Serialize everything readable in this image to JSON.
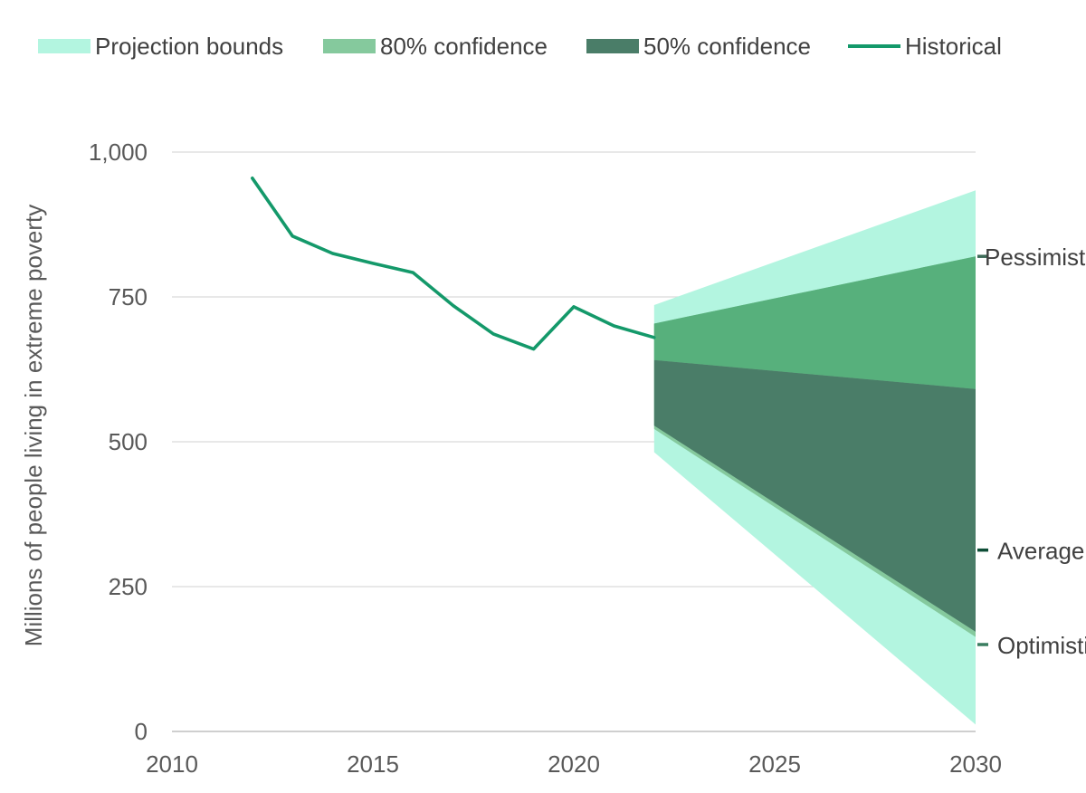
{
  "chart_data": {
    "type": "area",
    "title": "",
    "xlabel": "",
    "ylabel": "Millions of people living in extreme poverty",
    "xlim": [
      2010,
      2030
    ],
    "ylim": [
      0,
      1000
    ],
    "x_ticks": [
      2010,
      2015,
      2020,
      2025,
      2030
    ],
    "y_ticks": [
      {
        "value": 0,
        "label": "0"
      },
      {
        "value": 250,
        "label": "250"
      },
      {
        "value": 500,
        "label": "500"
      },
      {
        "value": 750,
        "label": "750"
      },
      {
        "value": 1000,
        "label": "1,000"
      }
    ],
    "grid": true,
    "legend_position": "top",
    "legend": [
      {
        "label": "Projection bounds",
        "color": "#b3f5e0",
        "kind": "area"
      },
      {
        "label": "80% confidence",
        "color": "#85c99d",
        "kind": "area"
      },
      {
        "label": "50% confidence",
        "color": "#4a7d68",
        "kind": "area"
      },
      {
        "label": "Historical",
        "color": "#14996a",
        "kind": "line"
      }
    ],
    "historical": {
      "name": "Historical",
      "color": "#14996a",
      "x": [
        2012,
        2013,
        2014,
        2015,
        2016,
        2017,
        2018,
        2019,
        2020,
        2021,
        2022
      ],
      "y": [
        955,
        855,
        825,
        808,
        792,
        735,
        686,
        660,
        733,
        700,
        680
      ]
    },
    "projection_bounds": {
      "name": "Projection bounds",
      "color": "#b3f5e0",
      "x": [
        2022,
        2030
      ],
      "upper": [
        736,
        934
      ],
      "lower": [
        482,
        12
      ]
    },
    "confidence_80": {
      "name": "80% confidence",
      "color": "#85c99d",
      "x": [
        2022,
        2030
      ],
      "upper": [
        704,
        820
      ],
      "lower": [
        522,
        163
      ]
    },
    "confidence_50": {
      "name": "50% confidence",
      "color": "#4a7d68",
      "x": [
        2022,
        2030
      ],
      "upper": [
        641,
        591
      ],
      "lower": [
        528,
        172
      ]
    },
    "band_80_upper_fill_color": "#57b07c",
    "annotations": [
      {
        "label": "Pessimistic",
        "x": 2030,
        "y": 820,
        "marker_color": "#3d6b58"
      },
      {
        "label": "Average",
        "x": 2030,
        "y": 313,
        "marker_color": "#0d4d36"
      },
      {
        "label": "Optimistic",
        "x": 2030,
        "y": 150,
        "marker_color": "#3a7d60"
      }
    ]
  }
}
